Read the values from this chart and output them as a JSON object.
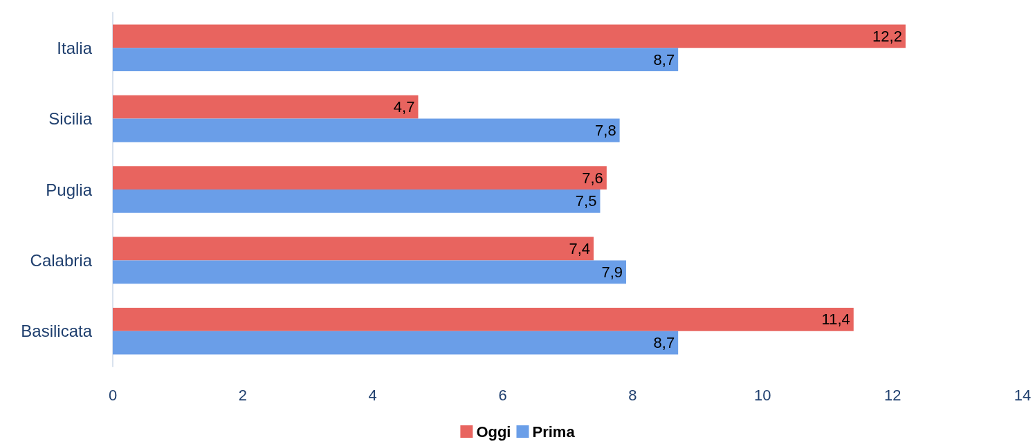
{
  "chart_data": {
    "type": "bar",
    "orientation": "horizontal",
    "categories": [
      "Italia",
      "Sicilia",
      "Puglia",
      "Calabria",
      "Basilicata"
    ],
    "series": [
      {
        "name": "Oggi",
        "color": "#e8645f",
        "values": [
          12.2,
          4.7,
          7.6,
          7.4,
          11.4
        ],
        "value_labels": [
          "12,2",
          "4,7",
          "7,6",
          "7,4",
          "11,4"
        ]
      },
      {
        "name": "Prima",
        "color": "#6a9ee8",
        "values": [
          8.7,
          7.8,
          7.5,
          7.9,
          8.7
        ],
        "value_labels": [
          "8,7",
          "7,8",
          "7,5",
          "7,9",
          "8,7"
        ]
      }
    ],
    "xlim": [
      0,
      14
    ],
    "xticks": [
      0,
      2,
      4,
      6,
      8,
      10,
      12,
      14
    ],
    "grid": false,
    "legend": "bottom"
  }
}
